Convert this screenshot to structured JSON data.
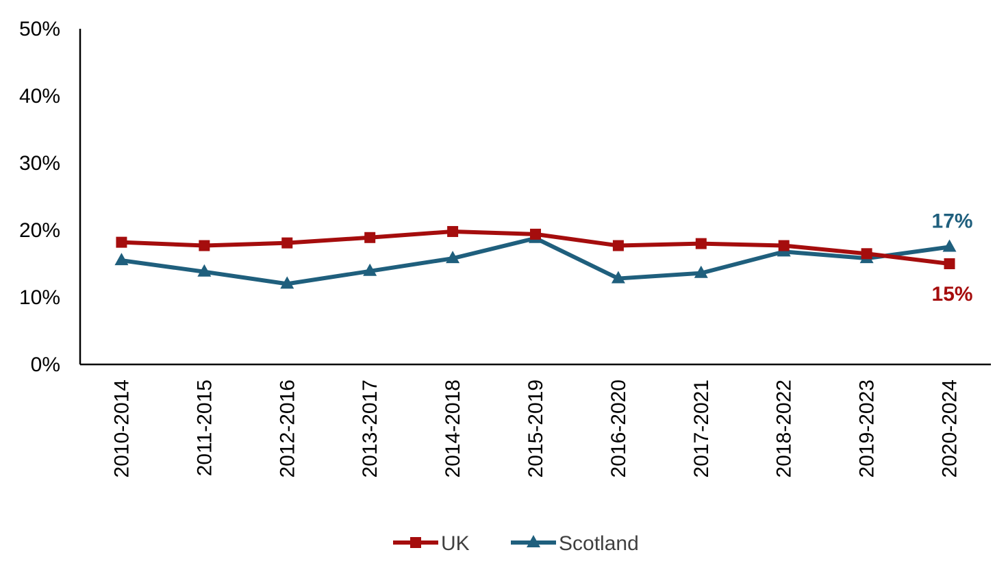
{
  "chart_data": {
    "type": "line",
    "title": "",
    "xlabel": "",
    "ylabel": "",
    "ylim": [
      0,
      0.5
    ],
    "yticks": [
      0,
      0.1,
      0.2,
      0.3,
      0.4,
      0.5
    ],
    "ytick_labels": [
      "0%",
      "10%",
      "20%",
      "30%",
      "40%",
      "50%"
    ],
    "grid": false,
    "legend_position": "bottom",
    "categories": [
      "2010-2014",
      "2011-2015",
      "2012-2016",
      "2013-2017",
      "2014-2018",
      "2015-2019",
      "2016-2020",
      "2017-2021",
      "2018-2022",
      "2019-2023",
      "2020-2024"
    ],
    "series": [
      {
        "name": "UK",
        "color": "#a50d0d",
        "marker": "square",
        "values": [
          0.182,
          0.177,
          0.181,
          0.189,
          0.198,
          0.194,
          0.177,
          0.18,
          0.177,
          0.165,
          0.15
        ],
        "end_label": "15%"
      },
      {
        "name": "Scotland",
        "color": "#1f5f7d",
        "marker": "triangle",
        "values": [
          0.155,
          0.138,
          0.12,
          0.139,
          0.158,
          0.188,
          0.128,
          0.136,
          0.168,
          0.158,
          0.175
        ],
        "end_label": "17%"
      }
    ]
  }
}
